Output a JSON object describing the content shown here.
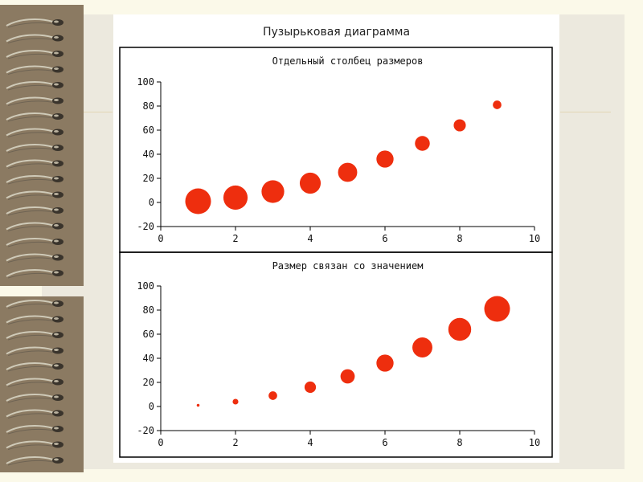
{
  "page": {
    "title": "Пузырьковая диаграмма"
  },
  "colors": {
    "bubble": "#ee2e0e",
    "frame": "#000000",
    "background": "#fbf9e9",
    "binder": "#8b7a62"
  },
  "decorations": {
    "binder": "spiral-rings-icon"
  },
  "chart_data": [
    {
      "type": "scatter",
      "title": "Отдельный столбец размеров",
      "xlabel": "",
      "ylabel": "",
      "xlim": [
        0,
        10
      ],
      "ylim": [
        -20,
        100
      ],
      "xticks": [
        0,
        2,
        4,
        6,
        8,
        10
      ],
      "yticks": [
        -20,
        0,
        20,
        40,
        60,
        80,
        100
      ],
      "grid": false,
      "x": [
        1,
        2,
        3,
        4,
        5,
        6,
        7,
        8,
        9
      ],
      "y": [
        1,
        4,
        9,
        16,
        25,
        36,
        49,
        64,
        81
      ],
      "sizes": [
        9,
        8,
        7,
        6,
        5,
        4,
        3,
        2,
        1
      ]
    },
    {
      "type": "scatter",
      "title": "Размер связан со значением",
      "xlabel": "",
      "ylabel": "",
      "xlim": [
        0,
        10
      ],
      "ylim": [
        -20,
        100
      ],
      "xticks": [
        0,
        2,
        4,
        6,
        8,
        10
      ],
      "yticks": [
        -20,
        0,
        20,
        40,
        60,
        80,
        100
      ],
      "grid": false,
      "x": [
        1,
        2,
        3,
        4,
        5,
        6,
        7,
        8,
        9
      ],
      "y": [
        1,
        4,
        9,
        16,
        25,
        36,
        49,
        64,
        81
      ],
      "sizes": [
        1,
        4,
        9,
        16,
        25,
        36,
        49,
        64,
        81
      ]
    }
  ]
}
